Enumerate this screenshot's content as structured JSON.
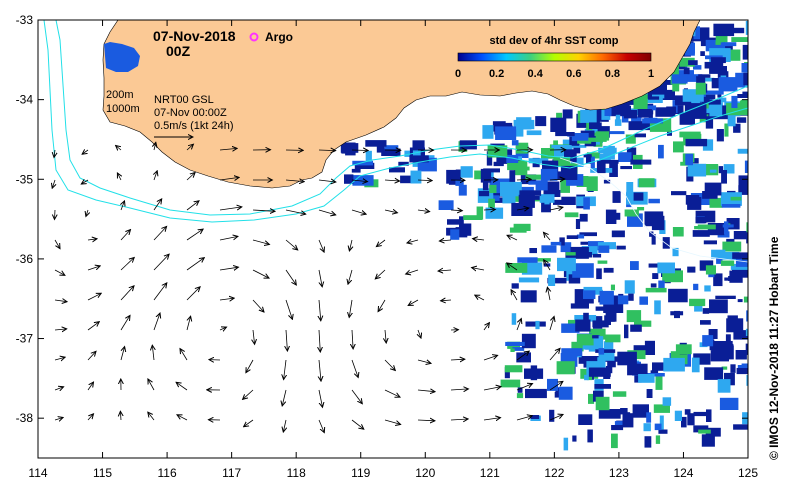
{
  "title": {
    "date": "07-Nov-2018",
    "time": "00Z"
  },
  "legend": {
    "argo_label": "Argo",
    "argo_color": "#ff33ff",
    "colorbar_title": "std dev of 4hr SST comp",
    "colorbar_ticks": [
      "0",
      "0.2",
      "0.4",
      "0.6",
      "0.8",
      "1"
    ],
    "colorbar_colors": [
      "#00008f",
      "#0050ff",
      "#00c8ff",
      "#3cd080",
      "#b4ff00",
      "#ffd200",
      "#ff6a00",
      "#c80000",
      "#800000"
    ]
  },
  "contours": {
    "depth_labels": [
      "200m",
      "1000m"
    ],
    "color": "#22e0e8"
  },
  "info": {
    "line1": "NRT00 GSL",
    "line2": "07-Nov 00:00Z",
    "scale_label": "0.5m/s (1kt 24h)"
  },
  "colors": {
    "land": "#fbc995",
    "ocean": "#ffffff",
    "sst_dark": "#0a1e96",
    "sst_mid": "#1a5be0",
    "sst_light": "#2ea8f0",
    "sst_green": "#30c060"
  },
  "axes": {
    "x_ticks": [
      "114",
      "115",
      "116",
      "117",
      "118",
      "119",
      "120",
      "121",
      "122",
      "123",
      "124",
      "125"
    ],
    "y_ticks": [
      "-33",
      "-34",
      "-35",
      "-36",
      "-37",
      "-38"
    ],
    "lon_range": [
      114,
      125
    ],
    "lat_range": [
      -38.5,
      -33
    ]
  },
  "credit": "© IMOS 12-Nov-2018 11:27 Hobart Time"
}
